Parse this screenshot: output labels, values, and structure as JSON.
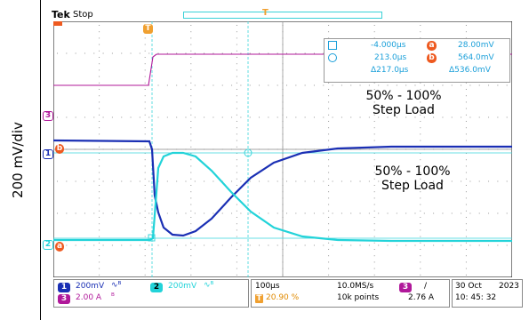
{
  "y_axis_label": "200 mV/div",
  "scope": {
    "brand": "Tek",
    "run_state": "Stop",
    "trigger_marker": "T",
    "ch1_marker": "1",
    "ch2_marker": "2",
    "ch3_marker": "3",
    "cursor_a_marker": "a",
    "cursor_b_marker": "b"
  },
  "cursor_readout": {
    "a_time": "-4.000µs",
    "a_value": "28.00mV",
    "b_time": "213.0µs",
    "b_value": "564.0mV",
    "delta_time": "Δ217.0µs",
    "delta_value": "Δ536.0mV"
  },
  "annotations": {
    "upper_line1": "50% - 100%",
    "upper_line2": "Step Load",
    "lower_line1": "50% - 100%",
    "lower_line2": "Step Load"
  },
  "status_bar": {
    "ch1_scale": "200mV",
    "ch2_scale": "200mV",
    "ch3_scale": "2.00 A",
    "timebase": "100µs",
    "trigger_pos": "20.90 %",
    "sample_rate": "10.0MS/s",
    "record_length": "10k points",
    "trigger_source": "3",
    "trigger_slope": "/",
    "trigger_level": "2.76 A",
    "date": "30 Oct",
    "year": "2023",
    "time": "10: 45: 32"
  },
  "colors": {
    "ch1": "#1a2fb4",
    "ch2": "#22d3d9",
    "ch3": "#b0189a",
    "cursor": "#ee5a20",
    "trigger": "#f0a030"
  }
}
